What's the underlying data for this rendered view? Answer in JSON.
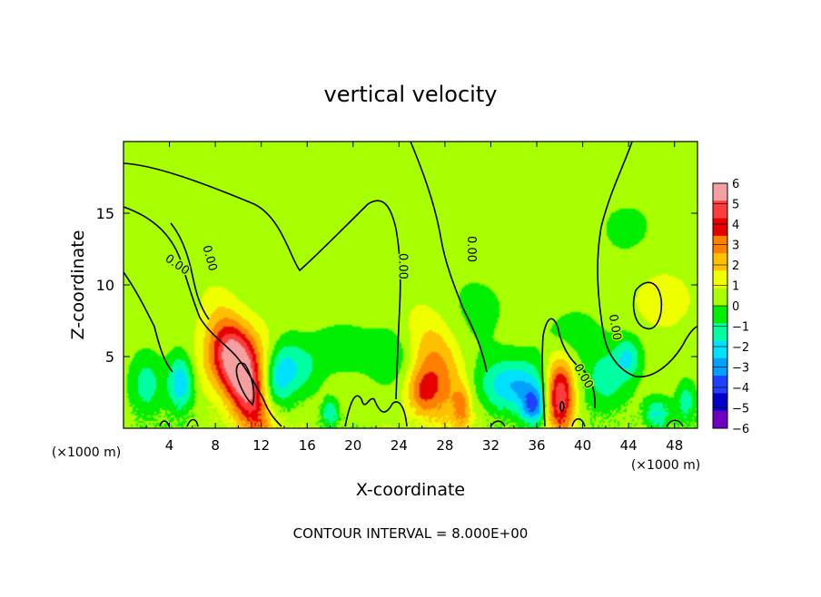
{
  "chart_data": {
    "type": "heatmap",
    "title": "vertical velocity",
    "xlabel": "X-coordinate",
    "ylabel": "Z-coordinate",
    "x_unit_left": "(×1000 m)",
    "x_unit_right": "(×1000 m)",
    "footer": "CONTOUR INTERVAL = 8.000E+00",
    "xlim": [
      0,
      50
    ],
    "ylim": [
      0,
      20
    ],
    "x_ticks": [
      "4",
      "8",
      "12",
      "16",
      "20",
      "24",
      "28",
      "32",
      "36",
      "40",
      "44",
      "48"
    ],
    "x_tick_values": [
      4,
      8,
      12,
      16,
      20,
      24,
      28,
      32,
      36,
      40,
      44,
      48
    ],
    "y_ticks": [
      "5",
      "10",
      "15"
    ],
    "y_tick_values": [
      5,
      10,
      15
    ],
    "colorbar": {
      "labels": [
        "6",
        "5",
        "4",
        "3",
        "2",
        "1",
        "0",
        "−1",
        "−2",
        "−3",
        "−4",
        "−5",
        "−6"
      ],
      "values": [
        6,
        5,
        4,
        3,
        2,
        1,
        0,
        -1,
        -2,
        -3,
        -4,
        -5,
        -6
      ],
      "colors": [
        "#f4a0a0",
        "#ff3c3c",
        "#e60000",
        "#ff7f00",
        "#ffc000",
        "#f0ff00",
        "#a8ff00",
        "#00ee00",
        "#00ffa0",
        "#00e0ff",
        "#00a0ff",
        "#2040ff",
        "#0000c8",
        "#7000c0"
      ]
    },
    "contour_labels": [
      {
        "text": "0.00",
        "x": 4.5,
        "y": 11.2,
        "rot": 35
      },
      {
        "text": "0.00",
        "x": 7.2,
        "y": 11.8,
        "rot": 75
      },
      {
        "text": "0.00",
        "x": 24.0,
        "y": 11.3,
        "rot": 90
      },
      {
        "text": "0.00",
        "x": 30.0,
        "y": 12.5,
        "rot": 90
      },
      {
        "text": "0.00",
        "x": 42.5,
        "y": 7.0,
        "rot": 80
      },
      {
        "text": "0.00",
        "x": 39.8,
        "y": 3.5,
        "rot": 60
      }
    ],
    "features": [
      {
        "x": 10.5,
        "z": 3.2,
        "w": 1.2,
        "h": 3.2,
        "v": 6.0,
        "rot": -25
      },
      {
        "x": 9.5,
        "z": 5.0,
        "w": 2.2,
        "h": 1.6,
        "v": 2.5,
        "rot": -20
      },
      {
        "x": 38.0,
        "z": 2.3,
        "w": 0.9,
        "h": 1.8,
        "v": 6.0,
        "rot": 0
      },
      {
        "x": 27.5,
        "z": 4.0,
        "w": 1.6,
        "h": 3.0,
        "v": 3.0,
        "rot": -20
      },
      {
        "x": 26.0,
        "z": 2.5,
        "w": 1.0,
        "h": 1.2,
        "v": 2.5,
        "rot": 0
      },
      {
        "x": 29.5,
        "z": 1.5,
        "w": 0.5,
        "h": 1.0,
        "v": 2.0,
        "rot": 0
      },
      {
        "x": 5.0,
        "z": 3.2,
        "w": 0.8,
        "h": 1.4,
        "v": -3.5,
        "rot": 0
      },
      {
        "x": 2.0,
        "z": 3.0,
        "w": 1.0,
        "h": 1.5,
        "v": -2.0,
        "rot": 0
      },
      {
        "x": 13.5,
        "z": 3.5,
        "w": 1.0,
        "h": 1.8,
        "v": -3.0,
        "rot": 15
      },
      {
        "x": 15.5,
        "z": 4.0,
        "w": 1.2,
        "h": 1.3,
        "v": -1.5,
        "rot": 0
      },
      {
        "x": 19.0,
        "z": 5.5,
        "w": 2.0,
        "h": 1.2,
        "v": -1.3,
        "rot": 0
      },
      {
        "x": 18.0,
        "z": 1.0,
        "w": 0.5,
        "h": 0.7,
        "v": -2.5,
        "rot": 0
      },
      {
        "x": 23.5,
        "z": 5.0,
        "w": 1.5,
        "h": 1.5,
        "v": -1.3,
        "rot": 0
      },
      {
        "x": 34.0,
        "z": 3.0,
        "w": 2.2,
        "h": 1.3,
        "v": -3.5,
        "rot": 0
      },
      {
        "x": 35.8,
        "z": 1.5,
        "w": 0.8,
        "h": 0.9,
        "v": -4.0,
        "rot": 0
      },
      {
        "x": 42.0,
        "z": 3.5,
        "w": 1.5,
        "h": 1.6,
        "v": -2.0,
        "rot": 0
      },
      {
        "x": 44.0,
        "z": 5.0,
        "w": 0.8,
        "h": 1.0,
        "v": -2.2,
        "rot": 0
      },
      {
        "x": 46.5,
        "z": 1.0,
        "w": 0.8,
        "h": 0.8,
        "v": -2.5,
        "rot": 0
      },
      {
        "x": 49.0,
        "z": 1.8,
        "w": 0.6,
        "h": 1.0,
        "v": -2.2,
        "rot": 0
      },
      {
        "x": 47.0,
        "z": 9.0,
        "w": 1.8,
        "h": 1.6,
        "v": 1.1,
        "rot": 0
      },
      {
        "x": 39.0,
        "z": 6.5,
        "w": 1.8,
        "h": 1.2,
        "v": -1.1,
        "rot": 0
      },
      {
        "x": 30.0,
        "z": 8.0,
        "w": 2.5,
        "h": 2.5,
        "v": -0.8,
        "rot": 0
      },
      {
        "x": 44.0,
        "z": 14.0,
        "w": 3.0,
        "h": 2.0,
        "v": -0.6,
        "rot": 0
      }
    ]
  }
}
